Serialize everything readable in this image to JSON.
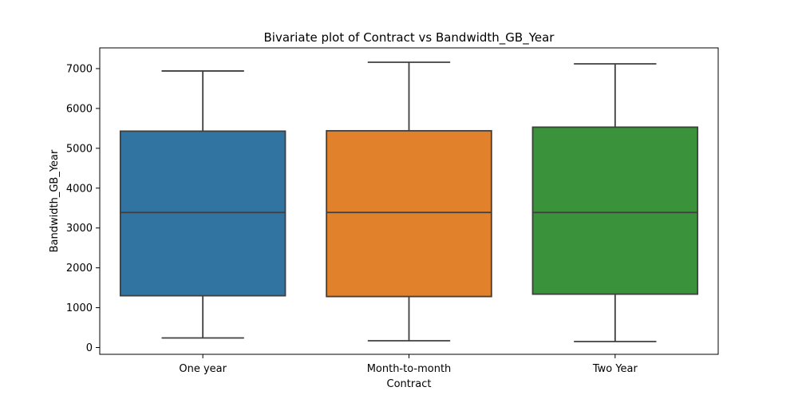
{
  "chart_data": {
    "type": "box",
    "title": "Bivariate plot of Contract vs Bandwidth_GB_Year",
    "xlabel": "Contract",
    "ylabel": "Bandwidth_GB_Year",
    "ylim": [
      -170,
      7520
    ],
    "yticks": [
      0,
      1000,
      2000,
      3000,
      4000,
      5000,
      6000,
      7000
    ],
    "grid": false,
    "categories": [
      "One year",
      "Month-to-month",
      "Two Year"
    ],
    "colors": [
      "#3274a1",
      "#e1812c",
      "#3a923a"
    ],
    "edge_color": "#3f3f3f",
    "boxes": [
      {
        "category": "One year",
        "whisker_low": 240,
        "q1": 1300,
        "median": 3390,
        "q3": 5430,
        "whisker_high": 6940
      },
      {
        "category": "Month-to-month",
        "whisker_low": 170,
        "q1": 1280,
        "median": 3390,
        "q3": 5440,
        "whisker_high": 7160
      },
      {
        "category": "Two Year",
        "whisker_low": 150,
        "q1": 1340,
        "median": 3390,
        "q3": 5530,
        "whisker_high": 7120
      }
    ]
  }
}
